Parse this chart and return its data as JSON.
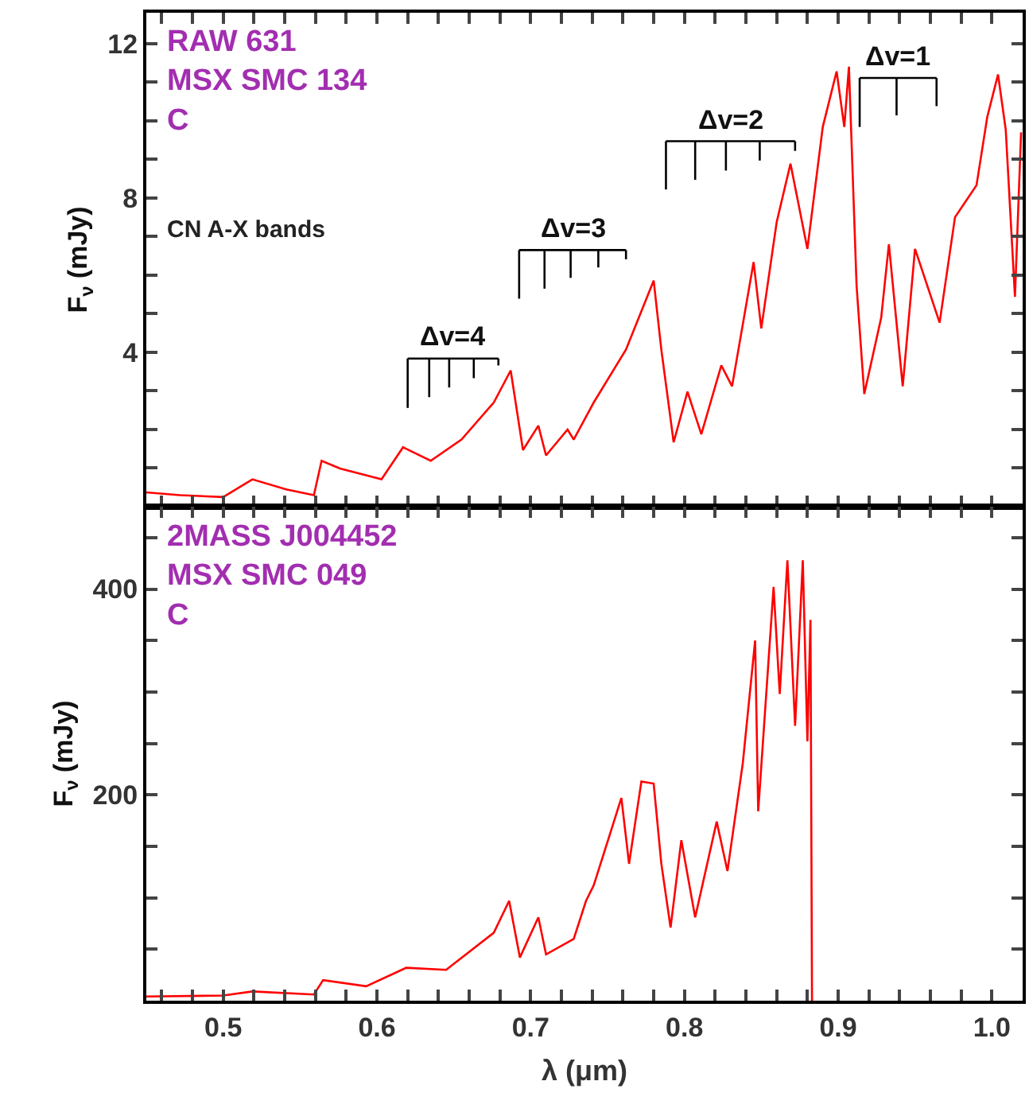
{
  "chart_data": [
    {
      "type": "line",
      "title": "RAW 631\nMSX SMC 134\nC",
      "ylabel": "F$_{ν}$ (mJy)",
      "xlim": [
        0.45,
        1.02
      ],
      "ylim": [
        0,
        12.8
      ],
      "tick_labels": "y",
      "xticks": [
        {
          "value": 0.46,
          "label": null
        },
        {
          "value": 0.48,
          "label": null
        },
        {
          "value": 0.5,
          "label": null
        },
        {
          "value": 0.52,
          "label": null
        },
        {
          "value": 0.54,
          "label": null
        },
        {
          "value": 0.56,
          "label": null
        },
        {
          "value": 0.58,
          "label": null
        },
        {
          "value": 0.6,
          "label": null
        },
        {
          "value": 0.62,
          "label": null
        },
        {
          "value": 0.64,
          "label": null
        },
        {
          "value": 0.66,
          "label": null
        },
        {
          "value": 0.68,
          "label": null
        },
        {
          "value": 0.7,
          "label": null
        },
        {
          "value": 0.72,
          "label": null
        },
        {
          "value": 0.74,
          "label": null
        },
        {
          "value": 0.76,
          "label": null
        },
        {
          "value": 0.78,
          "label": null
        },
        {
          "value": 0.8,
          "label": null
        },
        {
          "value": 0.82,
          "label": null
        },
        {
          "value": 0.84,
          "label": null
        },
        {
          "value": 0.86,
          "label": null
        },
        {
          "value": 0.88,
          "label": null
        },
        {
          "value": 0.9,
          "label": null
        },
        {
          "value": 0.92,
          "label": null
        },
        {
          "value": 0.94,
          "label": null
        },
        {
          "value": 0.96,
          "label": null
        },
        {
          "value": 0.98,
          "label": null
        },
        {
          "value": 1.0,
          "label": null
        },
        {
          "value": 1.02,
          "label": null
        }
      ],
      "yticks": [
        {
          "value": 1,
          "label": null
        },
        {
          "value": 2,
          "label": null
        },
        {
          "value": 3,
          "label": null
        },
        4,
        {
          "value": 5,
          "label": null
        },
        {
          "value": 6,
          "label": null
        },
        {
          "value": 7,
          "label": null
        },
        8,
        {
          "value": 9,
          "label": null
        },
        {
          "value": 10,
          "label": null
        },
        {
          "value": 11,
          "label": null
        },
        12
      ],
      "annotations": [
        "CN A-X bands",
        "Δv=4",
        "Δv=3",
        "Δv=2",
        "Δv=1"
      ],
      "series": [
        {
          "color": "#ff0000",
          "x": [
            0.45,
            0.472,
            0.5,
            0.519,
            0.541,
            0.559,
            0.564,
            0.576,
            0.603,
            0.617,
            0.635,
            0.655,
            0.676,
            0.687,
            0.695,
            0.705,
            0.71,
            0.724,
            0.728,
            0.741,
            0.762,
            0.78,
            0.785,
            0.793,
            0.802,
            0.811,
            0.824,
            0.831,
            0.845,
            0.85,
            0.86,
            0.869,
            0.88,
            0.89,
            0.899,
            0.904,
            0.907,
            0.912,
            0.917,
            0.928,
            0.933,
            0.942,
            0.95,
            0.966,
            0.976,
            0.99,
            0.997,
            1.004,
            1.009,
            1.015,
            1.019
          ],
          "values": [
            0.37,
            0.3,
            0.25,
            0.71,
            0.45,
            0.3,
            1.19,
            0.99,
            0.71,
            1.54,
            1.19,
            1.74,
            2.7,
            3.53,
            1.47,
            2.1,
            1.33,
            2.0,
            1.74,
            2.7,
            4.07,
            5.86,
            4.07,
            1.67,
            2.98,
            1.88,
            3.66,
            3.12,
            6.34,
            4.62,
            7.37,
            8.89,
            6.68,
            9.84,
            11.28,
            9.84,
            11.4,
            5.72,
            2.92,
            4.9,
            6.8,
            3.12,
            6.68,
            4.77,
            7.5,
            8.33,
            10.1,
            11.2,
            9.77,
            5.44,
            9.7
          ]
        },
        {
          "color": "#000000",
          "x": [
            0.62,
            0.679,
            null,
            0.62,
            0.62,
            null,
            0.634,
            0.634,
            null,
            0.647,
            0.647,
            null,
            0.663,
            0.663,
            null,
            0.679,
            0.679
          ],
          "values": [
            3.84,
            3.84,
            null,
            3.84,
            2.56,
            null,
            3.84,
            2.84,
            null,
            3.84,
            3.09,
            null,
            3.84,
            3.33,
            null,
            3.84,
            3.66
          ]
        },
        {
          "color": "#000000",
          "x": [
            0.6925,
            0.762,
            null,
            0.6925,
            0.6925,
            null,
            0.709,
            0.709,
            null,
            0.726,
            0.726,
            null,
            0.744,
            0.744,
            null,
            0.762,
            0.762
          ],
          "values": [
            6.65,
            6.65,
            null,
            6.65,
            5.39,
            null,
            6.65,
            5.65,
            null,
            6.65,
            5.93,
            null,
            6.65,
            6.2,
            null,
            6.65,
            6.41
          ]
        },
        {
          "color": "#000000",
          "x": [
            0.788,
            0.872,
            null,
            0.788,
            0.788,
            null,
            0.807,
            0.807,
            null,
            0.827,
            0.827,
            null,
            0.849,
            0.849,
            null,
            0.872,
            0.872
          ],
          "values": [
            9.47,
            9.47,
            null,
            9.47,
            8.22,
            null,
            9.47,
            8.47,
            null,
            9.47,
            8.71,
            null,
            9.47,
            8.97,
            null,
            9.47,
            9.22
          ]
        },
        {
          "color": "#000000",
          "x": [
            0.914,
            0.964,
            null,
            0.914,
            0.914,
            null,
            0.938,
            0.938,
            null,
            0.964,
            0.964
          ],
          "values": [
            11.11,
            11.11,
            null,
            11.11,
            9.84,
            null,
            11.11,
            10.14,
            null,
            11.11,
            10.38
          ]
        }
      ]
    },
    {
      "type": "line",
      "title": "2MASS J004452\nMSX SMC 049\nC",
      "xlabel": "λ (μm)",
      "ylabel": "F$_{ν}$ (mJy)",
      "xlim": [
        0.45,
        1.02
      ],
      "ylim": [
        0,
        480
      ],
      "xticks": [
        {
          "value": 0.46,
          "label": null
        },
        {
          "value": 0.48,
          "label": null
        },
        {
          "value": 0.5,
          "label": "0.5"
        },
        {
          "value": 0.52,
          "label": null
        },
        {
          "value": 0.54,
          "label": null
        },
        {
          "value": 0.56,
          "label": null
        },
        {
          "value": 0.58,
          "label": null
        },
        {
          "value": 0.6,
          "label": "0.6"
        },
        {
          "value": 0.62,
          "label": null
        },
        {
          "value": 0.64,
          "label": null
        },
        {
          "value": 0.66,
          "label": null
        },
        {
          "value": 0.68,
          "label": null
        },
        {
          "value": 0.7,
          "label": "0.7"
        },
        {
          "value": 0.72,
          "label": null
        },
        {
          "value": 0.74,
          "label": null
        },
        {
          "value": 0.76,
          "label": null
        },
        {
          "value": 0.78,
          "label": null
        },
        {
          "value": 0.8,
          "label": "0.8"
        },
        {
          "value": 0.82,
          "label": null
        },
        {
          "value": 0.84,
          "label": null
        },
        {
          "value": 0.86,
          "label": null
        },
        {
          "value": 0.88,
          "label": null
        },
        {
          "value": 0.9,
          "label": "0.9"
        },
        {
          "value": 0.92,
          "label": null
        },
        {
          "value": 0.94,
          "label": null
        },
        {
          "value": 0.96,
          "label": null
        },
        {
          "value": 0.98,
          "label": null
        },
        {
          "value": 1.0,
          "label": "1.0"
        },
        {
          "value": 1.02,
          "label": null
        }
      ],
      "yticks": [
        {
          "value": 50,
          "label": null
        },
        {
          "value": 100,
          "label": null
        },
        {
          "value": 150,
          "label": null
        },
        200,
        {
          "value": 250,
          "label": null
        },
        {
          "value": 300,
          "label": null
        },
        {
          "value": 350,
          "label": null
        },
        400,
        {
          "value": 450,
          "label": null
        }
      ],
      "series": [
        {
          "color": "#ff0000",
          "x": [
            0.45,
            0.5,
            0.519,
            0.559,
            0.565,
            0.593,
            0.619,
            0.645,
            0.676,
            0.686,
            0.693,
            0.705,
            0.71,
            0.728,
            0.736,
            0.741,
            0.759,
            0.764,
            0.772,
            0.78,
            0.785,
            0.791,
            0.798,
            0.807,
            0.821,
            0.828,
            0.838,
            0.846,
            0.848,
            0.858,
            0.862,
            0.867,
            0.872,
            0.877,
            0.88,
            0.882,
            0.883
          ],
          "values": [
            4,
            5,
            9,
            6,
            20,
            14,
            32,
            30,
            66,
            97,
            42,
            81,
            45,
            60,
            97,
            112,
            197,
            133,
            213,
            211,
            133,
            71,
            156,
            81,
            174,
            126,
            231,
            350,
            184,
            402,
            298,
            428,
            267,
            428,
            252,
            370,
            0
          ]
        }
      ]
    }
  ]
}
